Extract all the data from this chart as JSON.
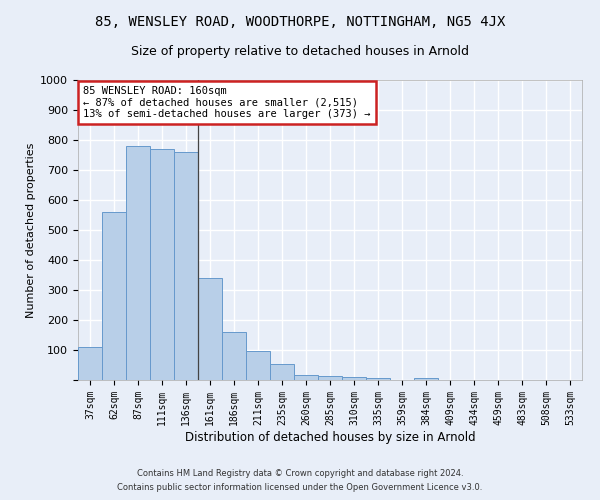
{
  "title1": "85, WENSLEY ROAD, WOODTHORPE, NOTTINGHAM, NG5 4JX",
  "title2": "Size of property relative to detached houses in Arnold",
  "xlabel": "Distribution of detached houses by size in Arnold",
  "ylabel": "Number of detached properties",
  "categories": [
    "37sqm",
    "62sqm",
    "87sqm",
    "111sqm",
    "136sqm",
    "161sqm",
    "186sqm",
    "211sqm",
    "235sqm",
    "260sqm",
    "285sqm",
    "310sqm",
    "335sqm",
    "359sqm",
    "384sqm",
    "409sqm",
    "434sqm",
    "459sqm",
    "483sqm",
    "508sqm",
    "533sqm"
  ],
  "values": [
    110,
    560,
    780,
    770,
    760,
    340,
    160,
    97,
    52,
    18,
    13,
    10,
    8,
    0,
    8,
    0,
    0,
    0,
    0,
    0,
    0
  ],
  "bar_color": "#b8cfe8",
  "bar_edge_color": "#6699cc",
  "ylim": [
    0,
    1000
  ],
  "yticks": [
    0,
    100,
    200,
    300,
    400,
    500,
    600,
    700,
    800,
    900,
    1000
  ],
  "annotation_title": "85 WENSLEY ROAD: 160sqm",
  "annotation_line1": "← 87% of detached houses are smaller (2,515)",
  "annotation_line2": "13% of semi-detached houses are larger (373) →",
  "vline_x_index": 5,
  "footer1": "Contains HM Land Registry data © Crown copyright and database right 2024.",
  "footer2": "Contains public sector information licensed under the Open Government Licence v3.0.",
  "background_color": "#e8eef8",
  "grid_color": "#ffffff",
  "title1_fontsize": 10,
  "title2_fontsize": 9,
  "annotation_box_facecolor": "#ffffff",
  "annotation_box_edgecolor": "#cc2222",
  "annotation_fontsize": 7.5,
  "ylabel_fontsize": 8,
  "xlabel_fontsize": 8.5,
  "tick_fontsize": 7
}
